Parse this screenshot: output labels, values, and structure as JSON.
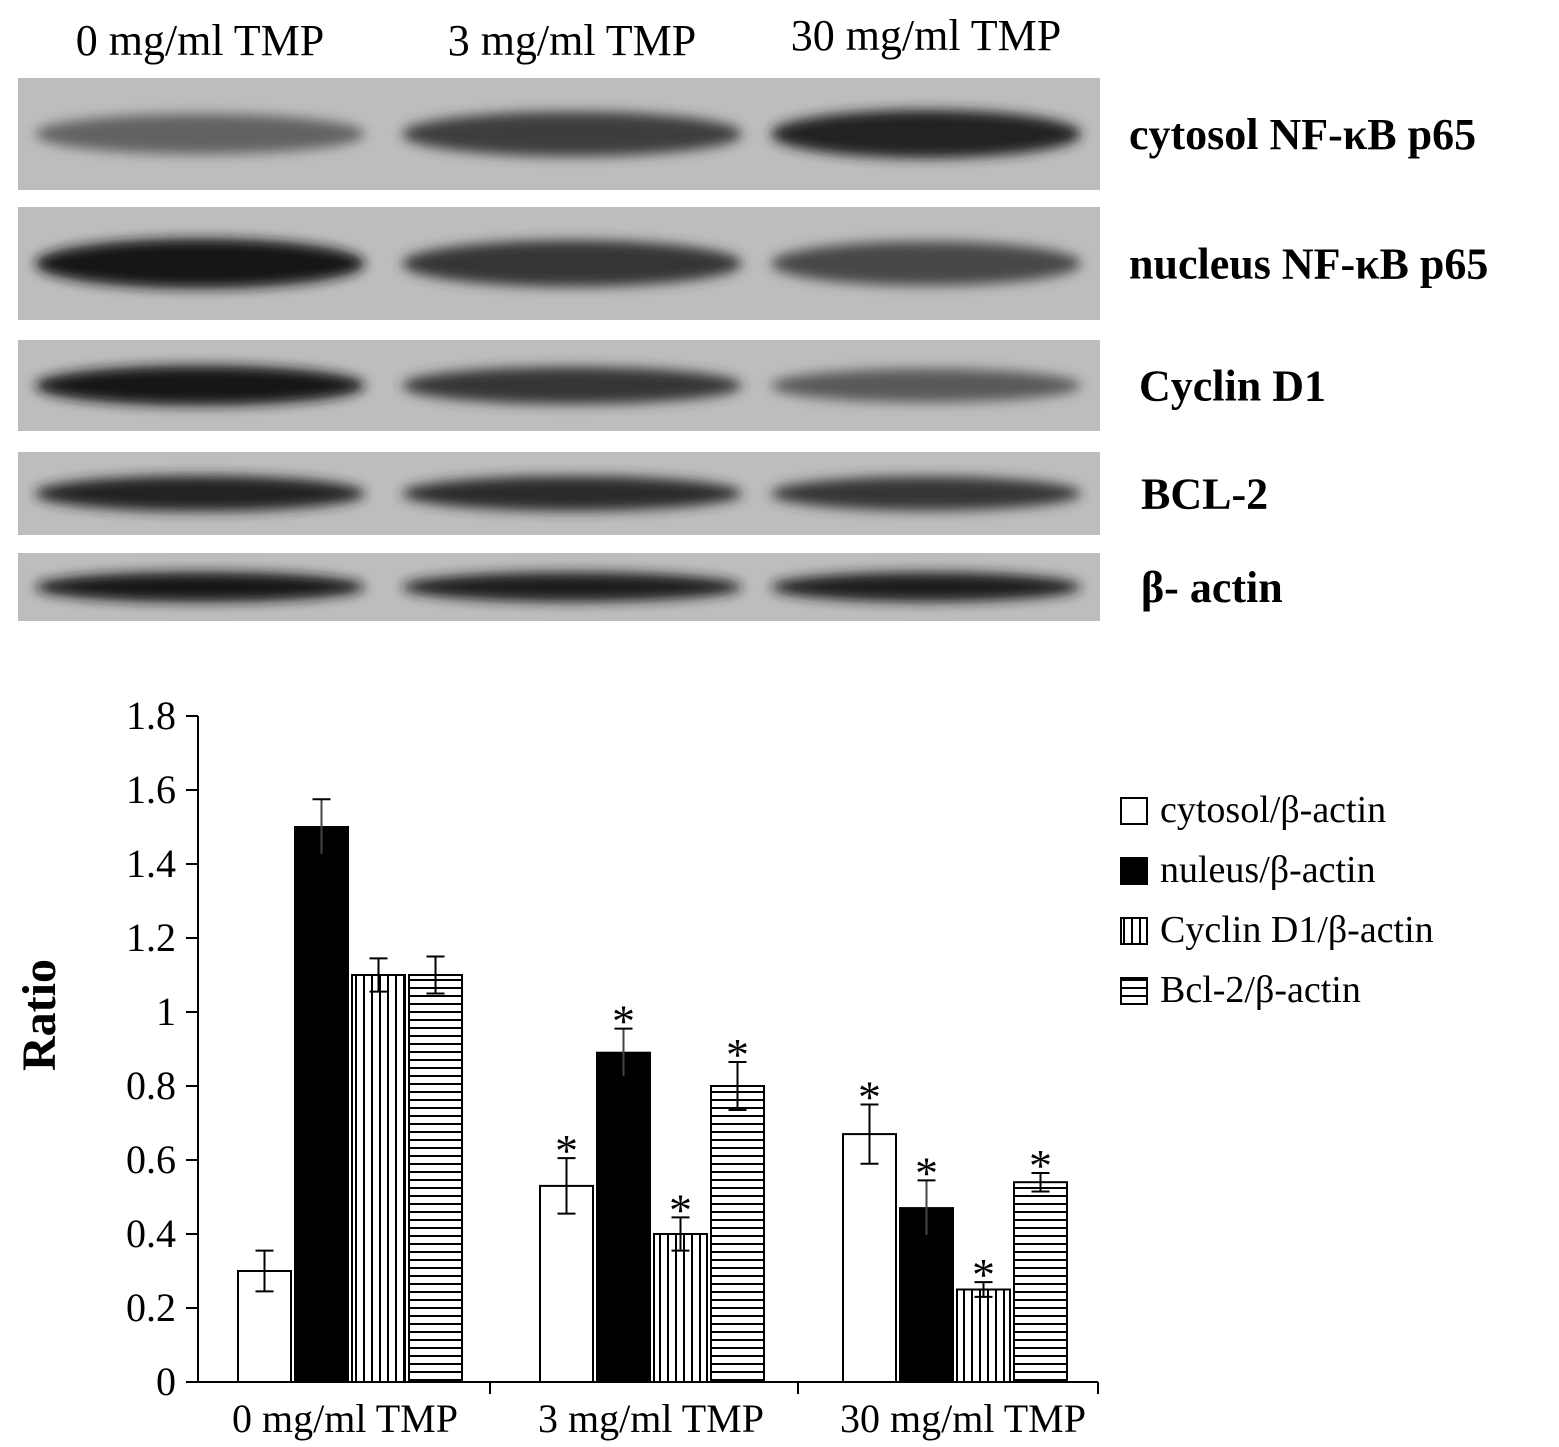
{
  "blot": {
    "lane_labels": [
      "0 mg/ml TMP",
      "3 mg/ml TMP",
      "30 mg/ml TMP"
    ],
    "rows": [
      {
        "label": "cytosol NF-κB p65",
        "intensity": [
          0.55,
          0.75,
          0.9
        ]
      },
      {
        "label": "nucleus NF-κB p65",
        "intensity": [
          0.95,
          0.8,
          0.7
        ]
      },
      {
        "label": "Cyclin D1",
        "intensity": [
          0.95,
          0.8,
          0.6
        ]
      },
      {
        "label": "BCL-2",
        "intensity": [
          0.9,
          0.85,
          0.8
        ]
      },
      {
        "label": "β- actin",
        "intensity": [
          0.95,
          0.92,
          0.92
        ]
      }
    ]
  },
  "chart_data": {
    "type": "bar",
    "categories": [
      "0 mg/ml TMP",
      "3 mg/ml TMP",
      "30 mg/ml TMP"
    ],
    "ylabel": "Ratio",
    "ylim": [
      0,
      1.8
    ],
    "yticks": [
      "0",
      "0.2",
      "0.4",
      "0.6",
      "0.8",
      "1",
      "1.2",
      "1.4",
      "1.6",
      "1.8"
    ],
    "legend_position": "right",
    "series": [
      {
        "name": "cytosol/β-actin",
        "fill": "white",
        "values": [
          0.3,
          0.53,
          0.67
        ],
        "errors": [
          0.055,
          0.075,
          0.08
        ],
        "significant": [
          false,
          true,
          true
        ]
      },
      {
        "name": "nuleus/β-actin",
        "fill": "black",
        "values": [
          1.5,
          0.89,
          0.47
        ],
        "errors": [
          0.075,
          0.065,
          0.075
        ],
        "significant": [
          false,
          true,
          true
        ]
      },
      {
        "name": "Cyclin D1/β-actin",
        "fill": "vertical-lines",
        "values": [
          1.1,
          0.4,
          0.25
        ],
        "errors": [
          0.045,
          0.045,
          0.02
        ],
        "significant": [
          false,
          true,
          true
        ]
      },
      {
        "name": "Bcl-2/β-actin",
        "fill": "horizontal-lines",
        "values": [
          1.1,
          0.8,
          0.54
        ],
        "errors": [
          0.05,
          0.065,
          0.025
        ],
        "significant": [
          false,
          true,
          true
        ]
      }
    ],
    "significance_marker": "*"
  }
}
